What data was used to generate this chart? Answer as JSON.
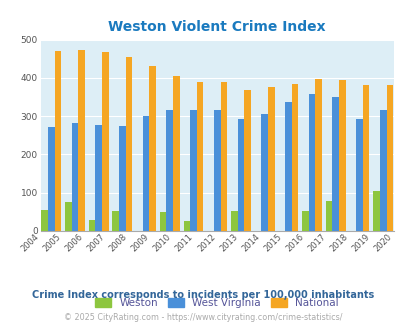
{
  "title": "Weston Violent Crime Index",
  "title_color": "#1a7abf",
  "years": [
    2005,
    2006,
    2007,
    2008,
    2009,
    2010,
    2011,
    2012,
    2013,
    2014,
    2015,
    2016,
    2017,
    2018,
    2019
  ],
  "weston": [
    55,
    75,
    28,
    53,
    0,
    50,
    25,
    0,
    53,
    0,
    0,
    53,
    78,
    0,
    105
  ],
  "west_virginia": [
    272,
    282,
    278,
    273,
    300,
    316,
    316,
    316,
    292,
    305,
    338,
    358,
    350,
    292,
    315
  ],
  "national": [
    469,
    474,
    467,
    455,
    432,
    405,
    389,
    389,
    368,
    377,
    384,
    398,
    394,
    381,
    381
  ],
  "weston_color": "#8dc63f",
  "wv_color": "#4a90d9",
  "national_color": "#f5a623",
  "bg_color": "#ddeef6",
  "ylim": [
    0,
    500
  ],
  "yticks": [
    0,
    100,
    200,
    300,
    400,
    500
  ],
  "xlabel_years": [
    2004,
    2005,
    2006,
    2007,
    2008,
    2009,
    2010,
    2011,
    2012,
    2013,
    2014,
    2015,
    2016,
    2017,
    2018,
    2019,
    2020
  ],
  "note": "Crime Index corresponds to incidents per 100,000 inhabitants",
  "note_color": "#336699",
  "copyright": "© 2025 CityRating.com - https://www.cityrating.com/crime-statistics/",
  "copyright_color": "#aaaaaa",
  "legend_label_color": "#555599",
  "grid_color": "#ffffff",
  "bar_width": 0.28
}
